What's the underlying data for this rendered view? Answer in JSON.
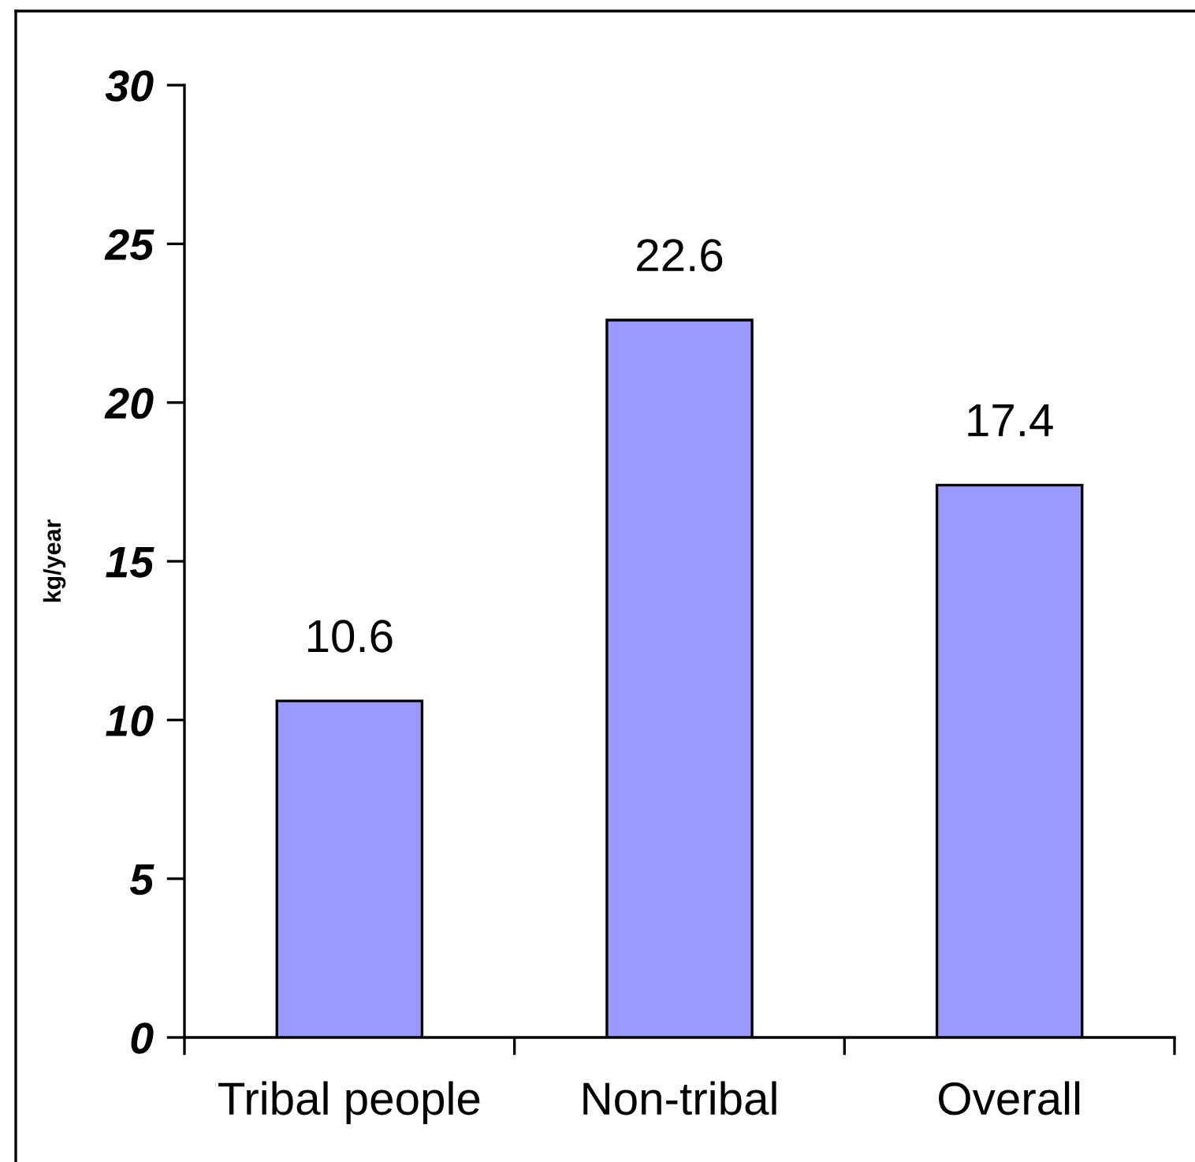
{
  "chart_data": {
    "type": "bar",
    "ylabel": "kg/year",
    "categories": [
      "Tribal people",
      "Non-tribal",
      "Overall"
    ],
    "values": [
      10.6,
      22.6,
      17.4
    ],
    "color": "#9999ff",
    "ylim": [
      0,
      30
    ],
    "yticks": [
      0,
      5,
      10,
      15,
      20,
      25,
      30
    ],
    "data_labels": true
  }
}
